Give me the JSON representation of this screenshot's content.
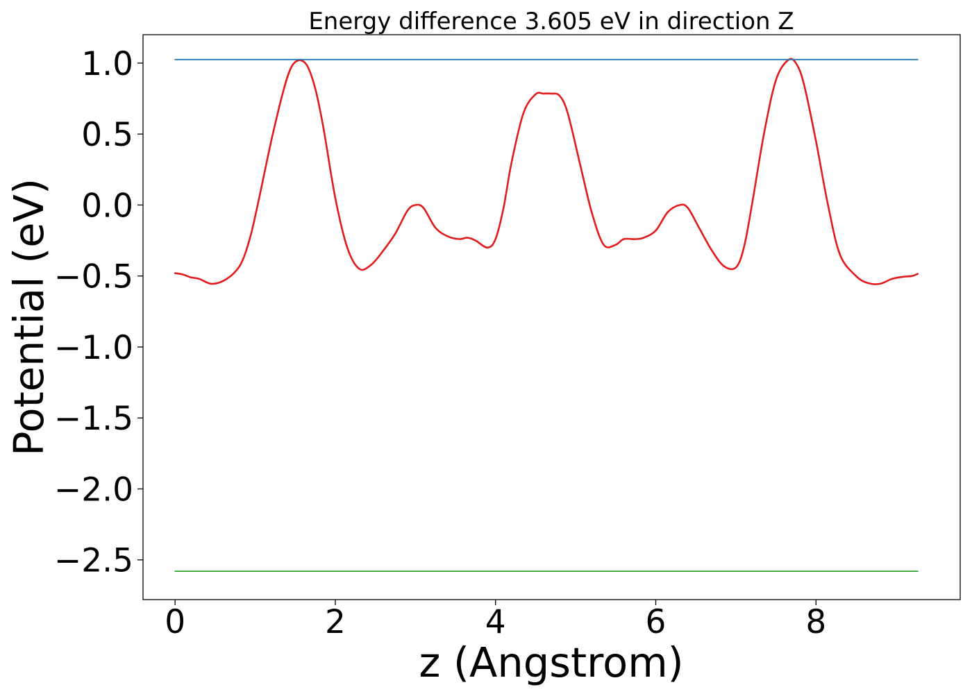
{
  "chart_data": {
    "type": "line",
    "title": "Energy difference 3.605 eV in direction Z",
    "xlabel": "z (Angstrom)",
    "ylabel": "Potential (eV)",
    "xlim": [
      -0.4,
      9.8
    ],
    "ylim": [
      -2.78,
      1.2
    ],
    "xticks": [
      0,
      2,
      4,
      6,
      8
    ],
    "xtick_labels": [
      "0",
      "2",
      "4",
      "6",
      "8"
    ],
    "yticks": [
      1.0,
      0.5,
      0.0,
      -0.5,
      -1.0,
      -1.5,
      -2.0,
      -2.5
    ],
    "ytick_labels": [
      "1.0",
      "0.5",
      "0.0",
      "−0.5",
      "−1.0",
      "−1.5",
      "−2.0",
      "−2.5"
    ],
    "grid": false,
    "colors": {
      "potential": "#e31a1c",
      "upper": "#1f77b4",
      "lower": "#2ca02c"
    },
    "series": [
      {
        "id": "potential",
        "x": [
          0.0,
          0.1,
          0.2,
          0.3,
          0.45,
          0.6,
          0.75,
          0.85,
          0.95,
          1.05,
          1.2,
          1.35,
          1.45,
          1.55,
          1.65,
          1.75,
          1.85,
          2.0,
          2.15,
          2.3,
          2.45,
          2.6,
          2.75,
          2.9,
          3.0,
          3.1,
          3.25,
          3.4,
          3.55,
          3.65,
          3.75,
          3.9,
          4.0,
          4.1,
          4.2,
          4.35,
          4.5,
          4.6,
          4.7,
          4.8,
          4.9,
          5.05,
          5.2,
          5.35,
          5.5,
          5.6,
          5.75,
          5.85,
          6.0,
          6.15,
          6.3,
          6.4,
          6.55,
          6.7,
          6.85,
          7.0,
          7.1,
          7.2,
          7.35,
          7.5,
          7.65,
          7.75,
          7.85,
          8.0,
          8.15,
          8.3,
          8.5,
          8.65,
          8.8,
          8.95,
          9.1,
          9.2,
          9.27
        ],
        "y": [
          -0.48,
          -0.49,
          -0.51,
          -0.52,
          -0.555,
          -0.535,
          -0.47,
          -0.38,
          -0.2,
          0.05,
          0.45,
          0.8,
          0.97,
          1.02,
          0.98,
          0.82,
          0.55,
          0.05,
          -0.3,
          -0.45,
          -0.42,
          -0.32,
          -0.2,
          -0.04,
          0.0,
          -0.02,
          -0.16,
          -0.22,
          -0.24,
          -0.23,
          -0.25,
          -0.3,
          -0.24,
          -0.02,
          0.3,
          0.65,
          0.78,
          0.785,
          0.785,
          0.77,
          0.65,
          0.3,
          -0.05,
          -0.28,
          -0.28,
          -0.24,
          -0.24,
          -0.23,
          -0.18,
          -0.05,
          0.0,
          -0.02,
          -0.17,
          -0.32,
          -0.43,
          -0.44,
          -0.3,
          0.0,
          0.5,
          0.88,
          1.02,
          1.0,
          0.85,
          0.45,
          0.0,
          -0.35,
          -0.5,
          -0.55,
          -0.555,
          -0.52,
          -0.505,
          -0.5,
          -0.485
        ]
      },
      {
        "id": "upper",
        "x": [
          0.0,
          9.27
        ],
        "y": [
          1.025,
          1.025
        ]
      },
      {
        "id": "lower",
        "x": [
          0.0,
          9.27
        ],
        "y": [
          -2.58,
          -2.58
        ]
      }
    ]
  }
}
